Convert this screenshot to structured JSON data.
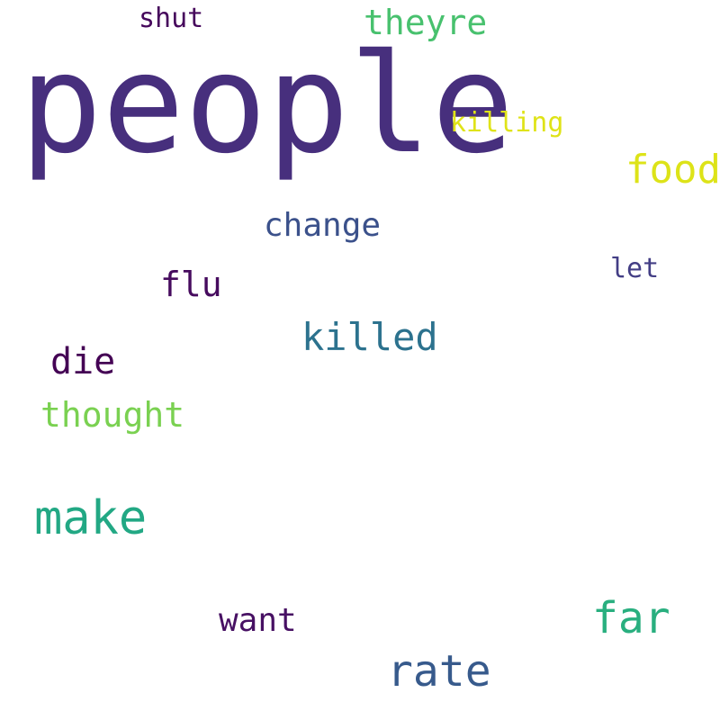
{
  "word_cloud": {
    "words": [
      {
        "text": "people",
        "color": "#472f7d"
      },
      {
        "text": "shut",
        "color": "#46085c"
      },
      {
        "text": "theyre",
        "color": "#48c16e"
      },
      {
        "text": "killing",
        "color": "#dfe318"
      },
      {
        "text": "food",
        "color": "#dde318"
      },
      {
        "text": "change",
        "color": "#3b518b"
      },
      {
        "text": "let",
        "color": "#433e85"
      },
      {
        "text": "flu",
        "color": "#460b5e"
      },
      {
        "text": "killed",
        "color": "#2c728e"
      },
      {
        "text": "die",
        "color": "#440154"
      },
      {
        "text": "thought",
        "color": "#7ad151"
      },
      {
        "text": "make",
        "color": "#22a884"
      },
      {
        "text": "far",
        "color": "#29af7f"
      },
      {
        "text": "want",
        "color": "#471063"
      },
      {
        "text": "rate",
        "color": "#375a8c"
      }
    ]
  }
}
